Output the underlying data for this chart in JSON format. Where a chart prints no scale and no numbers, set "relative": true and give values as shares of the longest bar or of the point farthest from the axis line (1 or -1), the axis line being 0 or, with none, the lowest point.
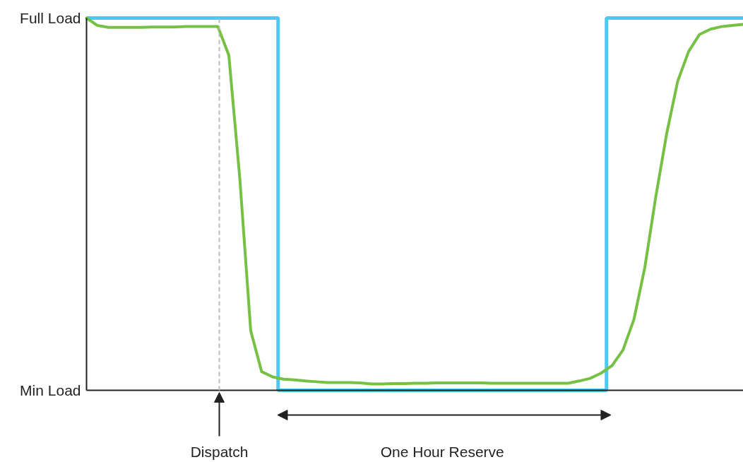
{
  "chart_data": {
    "type": "line",
    "categories": [
      null,
      null,
      null,
      null,
      null,
      null,
      null,
      null,
      null,
      null,
      null,
      null,
      null,
      null,
      null,
      null,
      null,
      null,
      null,
      null,
      null,
      null,
      null,
      null,
      null,
      null,
      null,
      null,
      null,
      null,
      null,
      null,
      null,
      null,
      null,
      null,
      null,
      null,
      null,
      null,
      null,
      null,
      null,
      null,
      null,
      null,
      null,
      null,
      null,
      null,
      null,
      null,
      null,
      null,
      null,
      null,
      null,
      null,
      null,
      null,
      null
    ],
    "relative": true,
    "series": [
      {
        "type": "step",
        "color": "#4dc8f4",
        "values": [
          1,
          1,
          1,
          1,
          1,
          1,
          1,
          1,
          1,
          1,
          1,
          1,
          1,
          1,
          1,
          1,
          1,
          1,
          0,
          0,
          0,
          0,
          0,
          0,
          0,
          0,
          0,
          0,
          0,
          0,
          0,
          0,
          0,
          0,
          0,
          0,
          0,
          0,
          0,
          0,
          0,
          0,
          0,
          0,
          0,
          0,
          0,
          0,
          1,
          1,
          1,
          1,
          1,
          1,
          1,
          1,
          1,
          1,
          1,
          1,
          1
        ]
      },
      {
        "color": "#76c043",
        "values": [
          1.0,
          0.98,
          0.975,
          0.975,
          0.975,
          0.975,
          0.976,
          0.976,
          0.976,
          0.977,
          0.977,
          0.977,
          0.977,
          0.9,
          0.57,
          0.16,
          0.05,
          0.036,
          0.03,
          0.028,
          0.025,
          0.023,
          0.021,
          0.021,
          0.021,
          0.02,
          0.017,
          0.017,
          0.018,
          0.018,
          0.019,
          0.019,
          0.02,
          0.02,
          0.02,
          0.02,
          0.02,
          0.019,
          0.019,
          0.019,
          0.019,
          0.019,
          0.019,
          0.019,
          0.019,
          0.025,
          0.032,
          0.046,
          0.066,
          0.108,
          0.19,
          0.33,
          0.52,
          0.69,
          0.83,
          0.91,
          0.956,
          0.97,
          0.977,
          0.98,
          0.983
        ]
      }
    ],
    "annotations": [
      "Full Load",
      "Min Load",
      "Dispatch",
      "One Hour Reserve"
    ]
  }
}
